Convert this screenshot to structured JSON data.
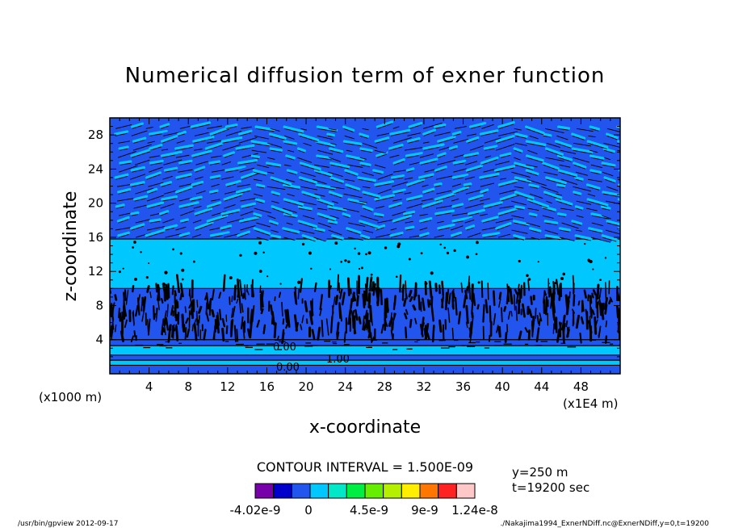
{
  "chart_data": {
    "type": "heatmap",
    "title": "Numerical diffusion term of exner function",
    "xlabel": "x-coordinate",
    "ylabel": "z-coordinate",
    "x_unit": "(x1E4 m)",
    "y_unit": "(x1000 m)",
    "xlim": [
      0,
      52
    ],
    "ylim": [
      0,
      30
    ],
    "x_ticks": [
      4,
      8,
      12,
      16,
      20,
      24,
      28,
      32,
      36,
      40,
      44,
      48
    ],
    "y_ticks": [
      4,
      8,
      12,
      16,
      20,
      24,
      28
    ],
    "contour_interval": "CONTOUR INTERVAL = 1.500E-09",
    "contour_labels": [
      "0.00",
      "1.00",
      "0.00"
    ],
    "info": [
      "y=250 m",
      "t=19200 sec"
    ],
    "colorbar": {
      "colors": [
        "#7700aa",
        "#0000cc",
        "#2255ee",
        "#00c8ff",
        "#00e8c8",
        "#00ee44",
        "#66ee00",
        "#b4f000",
        "#ffee00",
        "#ff7700",
        "#ff2222",
        "#ffc8c8"
      ],
      "labels": [
        "-4.02e-9",
        "0",
        "4.5e-9",
        "9e-9",
        "1.24e-8"
      ]
    },
    "bands": [
      {
        "z": [
          0,
          1.0
        ],
        "color": "#2255ee"
      },
      {
        "z": [
          1.0,
          1.6
        ],
        "color": "#00c8ff"
      },
      {
        "z": [
          1.6,
          2.2
        ],
        "color": "#2255ee"
      },
      {
        "z": [
          2.2,
          3.3
        ],
        "color": "#00c8ff"
      },
      {
        "z": [
          3.3,
          4.0
        ],
        "color": "#2255ee"
      },
      {
        "z": [
          4.0,
          10.0
        ],
        "color": "#2255ee"
      },
      {
        "z": [
          10.0,
          15.8
        ],
        "color": "#00c8ff"
      },
      {
        "z": [
          15.8,
          30.0
        ],
        "color": "#2255ee"
      }
    ],
    "dominant_colors": {
      "low": "#2255ee",
      "mid": "#00c8ff",
      "dense_lines": "#000000"
    }
  },
  "footer": {
    "left": "/usr/bin/gpview   2012-09-17",
    "right": "./Nakajima1994_ExnerNDiff.nc@ExnerNDiff,y=0,t=19200"
  }
}
